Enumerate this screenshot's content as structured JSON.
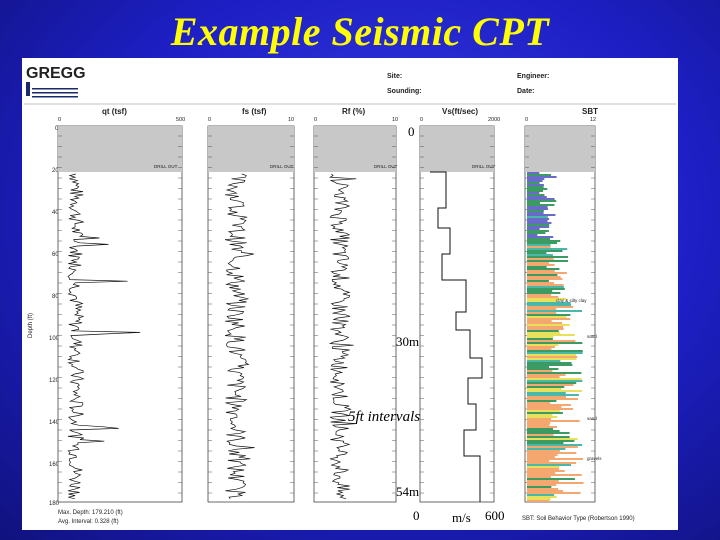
{
  "slide": {
    "title": "Example Seismic CPT"
  },
  "header": {
    "logo_text": "GREGG",
    "site_label": "Site:",
    "sounding_label": "Sounding:",
    "engineer_label": "Engineer:",
    "date_label": "Date:"
  },
  "tracks": {
    "qt": {
      "title": "qt (tsf)",
      "min": "0",
      "max": "500",
      "drill": "DRILL OUT"
    },
    "fs": {
      "title": "fs (tsf)",
      "min": "0",
      "max": "10",
      "drill": "DRILL OUT"
    },
    "rf": {
      "title": "Rf (%)",
      "min": "0",
      "max": "10",
      "drill": "DRILL OUT"
    },
    "vs": {
      "title": "Vs(ft/sec)",
      "min": "0",
      "max": "2000",
      "drill": "DRILL OUT"
    },
    "sbt": {
      "title": "SBT",
      "min": "0",
      "max": "12",
      "drill": "DRILL OUT"
    }
  },
  "depth_axis": {
    "label": "Depth (ft)",
    "ticks": [
      "0",
      "20",
      "40",
      "60",
      "80",
      "100",
      "120",
      "140",
      "160",
      "180"
    ]
  },
  "sbt_labels": {
    "clay": "clay & silty clay",
    "sand1": "sand",
    "sand2": "sand",
    "gravel": "gravels"
  },
  "footer": {
    "max_depth": "Max. Depth: 179.210 (ft)",
    "avg_interval": "Avg. Interval: 0.328 (ft)",
    "sbt_note": "SBT: Soil Behavior Type (Robertson 1990)"
  },
  "notes": {
    "vs_top": "0",
    "depth_30m": "30m",
    "intervals": "5ft intervals",
    "depth_54m": "54m",
    "axis_zero": "0",
    "axis_unit": "m/s",
    "axis_max": "600"
  },
  "colors": {
    "slide_bg": "#1d1fc4",
    "title": "#ffff00",
    "drill_out_band": "#c8c8c8",
    "sbt_green": "#3b9b63",
    "sbt_orange": "#f4a870",
    "sbt_blue": "#6a6ac8",
    "sbt_yellow": "#e8e05a",
    "sbt_teal": "#4ab8a8"
  }
}
